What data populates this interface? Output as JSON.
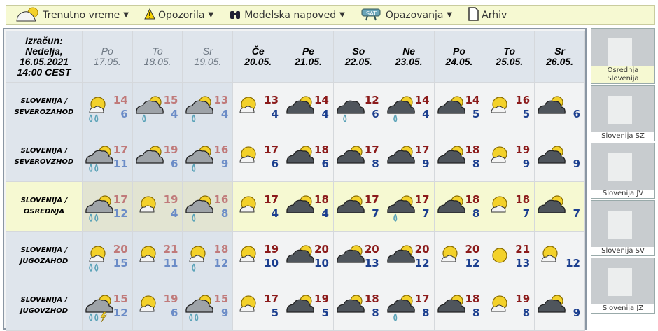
{
  "toolbar": {
    "items": [
      {
        "label": "Trenutno vreme",
        "icon": "cloud-sun-icon",
        "dropdown": true
      },
      {
        "label": "Opozorila",
        "icon": "warning-icon",
        "dropdown": true
      },
      {
        "label": "Modelska napoved",
        "icon": "binoculars-icon",
        "dropdown": true
      },
      {
        "label": "Opazovanja",
        "icon": "satellite-icon",
        "dropdown": true
      },
      {
        "label": "Arhiv",
        "icon": "document-icon",
        "dropdown": false
      }
    ]
  },
  "header": {
    "calc": [
      "Izračun:",
      "Nedelja,",
      "16.05.2021",
      "14:00 CEST"
    ],
    "days": [
      {
        "d": "Po",
        "date": "17.05.",
        "past": true
      },
      {
        "d": "To",
        "date": "18.05.",
        "past": true
      },
      {
        "d": "Sr",
        "date": "19.05.",
        "past": true
      },
      {
        "d": "Če",
        "date": "20.05."
      },
      {
        "d": "Pe",
        "date": "21.05."
      },
      {
        "d": "So",
        "date": "22.05."
      },
      {
        "d": "Ne",
        "date": "23.05."
      },
      {
        "d": "Po",
        "date": "24.05."
      },
      {
        "d": "To",
        "date": "25.05."
      },
      {
        "d": "Sr",
        "date": "26.05."
      }
    ]
  },
  "rows": [
    {
      "region": [
        "SLOVENIJA /",
        "SEVEROZAHOD"
      ],
      "cells": [
        {
          "icon": "sun-cloud-rain",
          "max": "14",
          "min": "6"
        },
        {
          "icon": "cloud-sun-drizzle",
          "max": "15",
          "min": "4"
        },
        {
          "icon": "cloud-sun-drizzle",
          "max": "13",
          "min": "4"
        },
        {
          "icon": "sun-small-cloud",
          "max": "13",
          "min": "4"
        },
        {
          "icon": "dark-cloud-sun",
          "max": "14",
          "min": "4"
        },
        {
          "icon": "dark-cloud-drizzle",
          "max": "12",
          "min": "6"
        },
        {
          "icon": "dark-cloud-sun-drizzle",
          "max": "14",
          "min": "4"
        },
        {
          "icon": "dark-cloud-sun",
          "max": "14",
          "min": "5"
        },
        {
          "icon": "sun-small-cloud",
          "max": "16",
          "min": "5"
        },
        {
          "icon": "dark-cloud-sun",
          "max": "",
          "min": "6"
        }
      ]
    },
    {
      "region": [
        "SLOVENIJA /",
        "SEVEROVZHOD"
      ],
      "cells": [
        {
          "icon": "cloud-sun-rain",
          "max": "17",
          "min": "11"
        },
        {
          "icon": "cloud-sun",
          "max": "19",
          "min": "6"
        },
        {
          "icon": "cloud-sun-drizzle",
          "max": "16",
          "min": "9"
        },
        {
          "icon": "sun-small-cloud",
          "max": "17",
          "min": "6"
        },
        {
          "icon": "dark-cloud-sun",
          "max": "18",
          "min": "6"
        },
        {
          "icon": "dark-cloud-sun",
          "max": "17",
          "min": "8"
        },
        {
          "icon": "dark-cloud-sun",
          "max": "17",
          "min": "9"
        },
        {
          "icon": "dark-cloud-sun",
          "max": "18",
          "min": "8"
        },
        {
          "icon": "sun-small-cloud",
          "max": "19",
          "min": "9"
        },
        {
          "icon": "dark-cloud-sun",
          "max": "",
          "min": "9"
        }
      ]
    },
    {
      "region": [
        "SLOVENIJA /",
        "OSREDNJA"
      ],
      "selected": true,
      "cells": [
        {
          "icon": "cloud-sun-rain",
          "max": "17",
          "min": "12"
        },
        {
          "icon": "sun-small-cloud",
          "max": "19",
          "min": "4"
        },
        {
          "icon": "cloud-sun-drizzle",
          "max": "16",
          "min": "8"
        },
        {
          "icon": "sun-small-cloud",
          "max": "17",
          "min": "4"
        },
        {
          "icon": "dark-cloud-sun",
          "max": "18",
          "min": "4"
        },
        {
          "icon": "dark-cloud-sun",
          "max": "17",
          "min": "7"
        },
        {
          "icon": "dark-cloud-sun-drizzle",
          "max": "17",
          "min": "7"
        },
        {
          "icon": "dark-cloud-sun",
          "max": "18",
          "min": "8"
        },
        {
          "icon": "sun-small-cloud",
          "max": "18",
          "min": "7"
        },
        {
          "icon": "dark-cloud-sun",
          "max": "",
          "min": "7"
        }
      ]
    },
    {
      "region": [
        "SLOVENIJA /",
        "JUGOZAHOD"
      ],
      "cells": [
        {
          "icon": "sun-cloud-rain",
          "max": "20",
          "min": "15"
        },
        {
          "icon": "sun-small-cloud",
          "max": "21",
          "min": "11"
        },
        {
          "icon": "sun-cloud-drizzle",
          "max": "18",
          "min": "12"
        },
        {
          "icon": "sun-small-cloud",
          "max": "19",
          "min": "10"
        },
        {
          "icon": "dark-cloud-sun",
          "max": "20",
          "min": "10"
        },
        {
          "icon": "dark-cloud-sun",
          "max": "20",
          "min": "13"
        },
        {
          "icon": "dark-cloud-sun",
          "max": "20",
          "min": "12"
        },
        {
          "icon": "sun-small-cloud",
          "max": "20",
          "min": "12"
        },
        {
          "icon": "sun",
          "max": "21",
          "min": "13"
        },
        {
          "icon": "sun-small-cloud",
          "max": "",
          "min": "12"
        }
      ]
    },
    {
      "region": [
        "SLOVENIJA /",
        "JUGOVZHOD"
      ],
      "cells": [
        {
          "icon": "cloud-sun-thunder-rain",
          "max": "15",
          "min": "12"
        },
        {
          "icon": "sun-small-cloud",
          "max": "19",
          "min": "6"
        },
        {
          "icon": "cloud-sun-rain",
          "max": "15",
          "min": "9"
        },
        {
          "icon": "sun-small-cloud",
          "max": "17",
          "min": "5"
        },
        {
          "icon": "dark-cloud-sun",
          "max": "19",
          "min": "5"
        },
        {
          "icon": "dark-cloud-sun",
          "max": "18",
          "min": "8"
        },
        {
          "icon": "dark-cloud-sun-drizzle",
          "max": "17",
          "min": "8"
        },
        {
          "icon": "dark-cloud-sun",
          "max": "18",
          "min": "8"
        },
        {
          "icon": "sun-small-cloud",
          "max": "19",
          "min": "8"
        },
        {
          "icon": "dark-cloud-sun",
          "max": "",
          "min": "9"
        }
      ]
    }
  ],
  "maps": [
    {
      "label": "Osrednja Slovenija",
      "selected": true
    },
    {
      "label": "Slovenija SZ"
    },
    {
      "label": "Slovenija JV"
    },
    {
      "label": "Slovenija SV"
    },
    {
      "label": "Slovenija JZ"
    }
  ],
  "colors": {
    "toolbar_bg": "#f6f9d2",
    "max_temp": "#8b1a1a",
    "min_temp": "#1c3f8f",
    "sun": "#f3d12a"
  }
}
